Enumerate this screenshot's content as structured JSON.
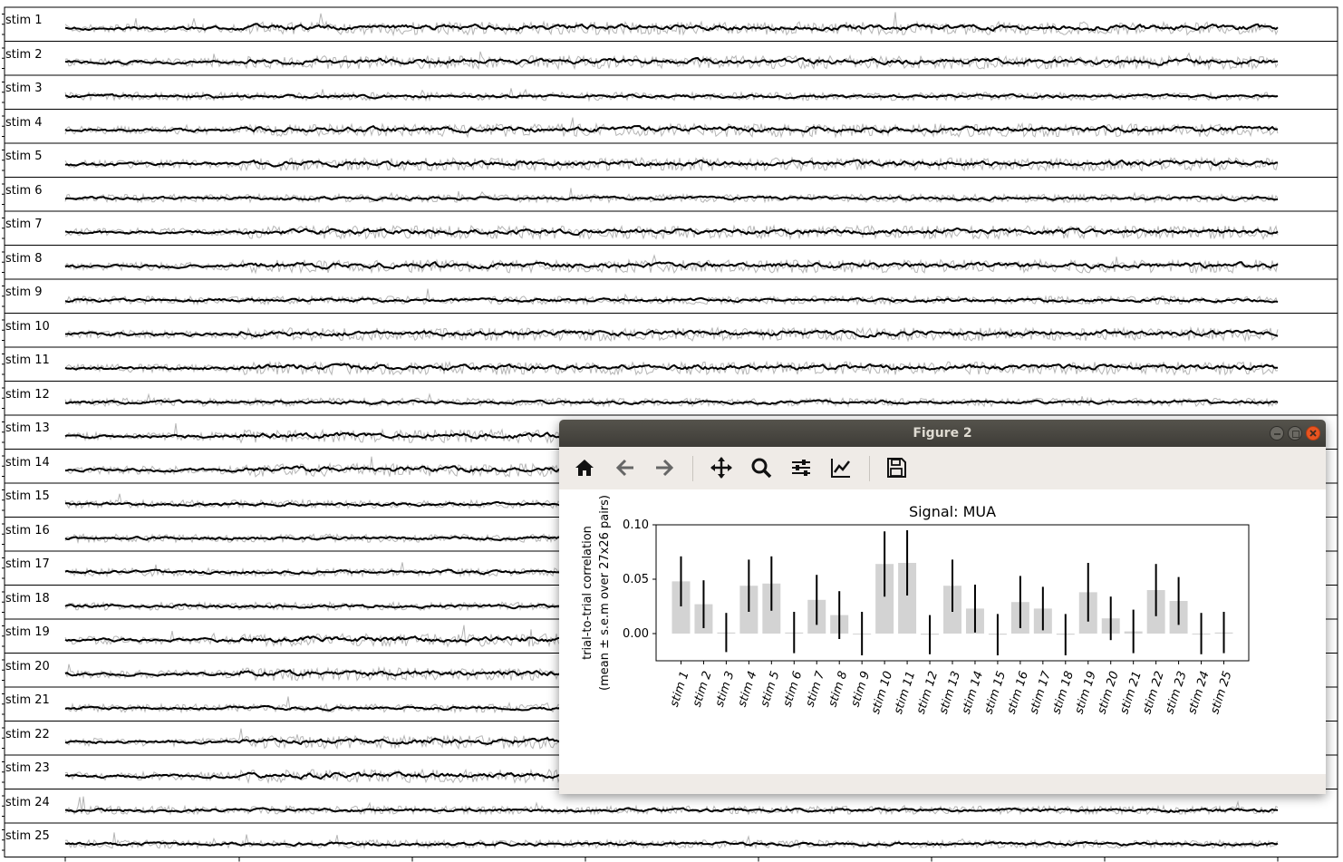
{
  "background_figure": {
    "stim_labels": [
      "stim 1",
      "stim 2",
      "stim 3",
      "stim 4",
      "stim 5",
      "stim 6",
      "stim 7",
      "stim 8",
      "stim 9",
      "stim 10",
      "stim 11",
      "stim 12",
      "stim 13",
      "stim 14",
      "stim 15",
      "stim 16",
      "stim 17",
      "stim 18",
      "stim 19",
      "stim 20",
      "stim 21",
      "stim 22",
      "stim 23",
      "stim 24",
      "stim 25"
    ]
  },
  "figure2_window": {
    "title": "Figure 2",
    "toolbar": [
      "home-icon",
      "back-arrow-icon",
      "forward-arrow-icon",
      "pan-move-icon",
      "zoom-magnifier-icon",
      "configure-subplots-icon",
      "edit-axis-icon",
      "save-floppy-icon"
    ]
  },
  "colors": {
    "bar": "#d3d3d3",
    "error": "#000000",
    "titlebar": "#4a4843",
    "close": "#e95420"
  },
  "chart_data": {
    "type": "bar",
    "title": "Signal: MUA",
    "ylabel": "trial-to-trial correlation\n(mean ± s.e.m over 27x26 pairs)",
    "xlabel": "",
    "ylim": [
      -0.025,
      0.1
    ],
    "yticks": [
      "0.10",
      "0.05",
      "0.00"
    ],
    "ytick_values": [
      0.1,
      0.05,
      0.0
    ],
    "categories": [
      "stim 1",
      "stim 2",
      "stim 3",
      "stim 4",
      "stim 5",
      "stim 6",
      "stim 7",
      "stim 8",
      "stim 9",
      "stim 10",
      "stim 11",
      "stim 12",
      "stim 13",
      "stim 14",
      "stim 15",
      "stim 16",
      "stim 17",
      "stim 18",
      "stim 19",
      "stim 20",
      "stim 21",
      "stim 22",
      "stim 23",
      "stim 24",
      "stim 25"
    ],
    "values": [
      0.048,
      0.027,
      0.001,
      0.044,
      0.046,
      0.001,
      0.031,
      0.017,
      0.0,
      0.064,
      0.065,
      -0.001,
      0.044,
      0.023,
      -0.001,
      0.029,
      0.023,
      -0.001,
      0.038,
      0.014,
      0.002,
      0.04,
      0.03,
      0.0,
      0.001
    ],
    "errors": [
      0.023,
      0.022,
      0.018,
      0.024,
      0.025,
      0.019,
      0.023,
      0.022,
      0.02,
      0.03,
      0.03,
      0.018,
      0.024,
      0.022,
      0.019,
      0.024,
      0.02,
      0.019,
      0.027,
      0.02,
      0.02,
      0.024,
      0.022,
      0.019,
      0.019
    ]
  }
}
